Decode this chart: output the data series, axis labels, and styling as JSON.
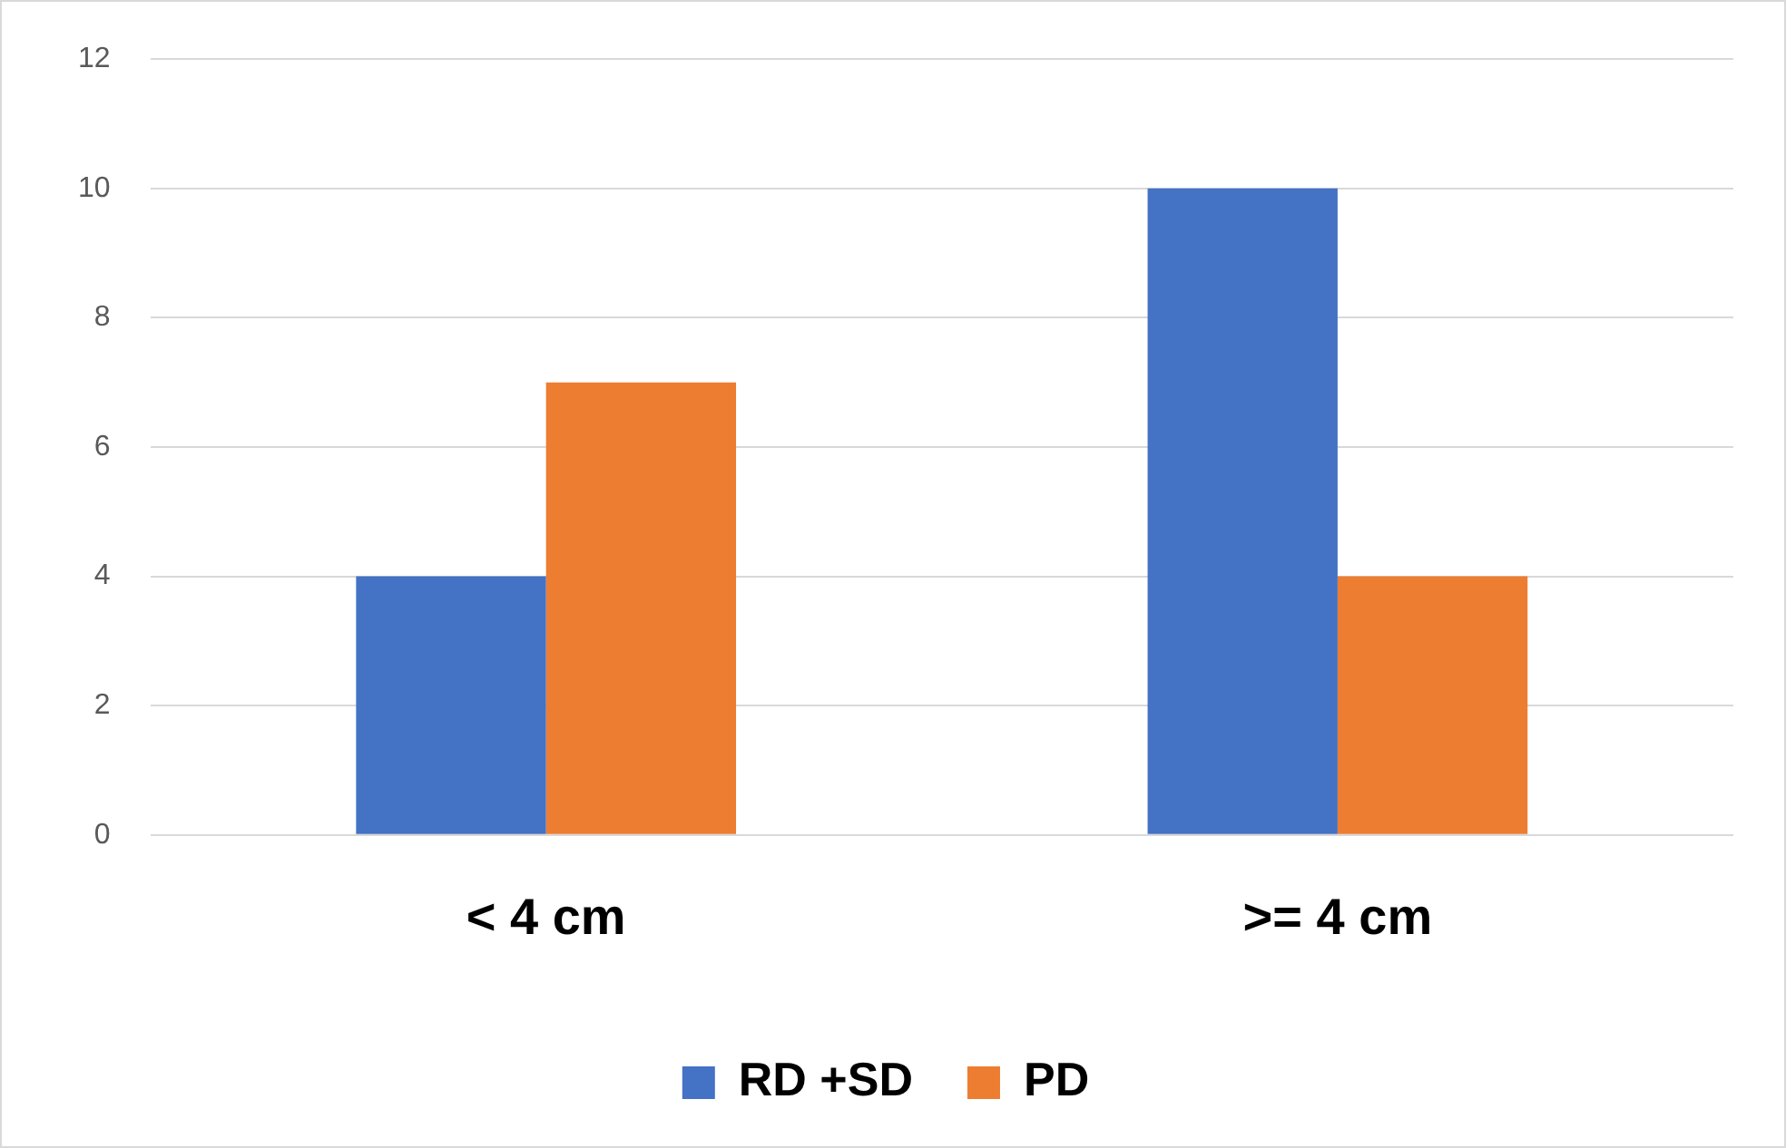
{
  "chart_data": {
    "type": "bar",
    "categories": [
      "< 4 cm",
      ">= 4 cm"
    ],
    "series": [
      {
        "name": "RD +SD",
        "color": "#4472c4",
        "values": [
          4,
          10
        ]
      },
      {
        "name": "PD",
        "color": "#ed7d31",
        "values": [
          7,
          4
        ]
      }
    ],
    "ylim": [
      0,
      12
    ],
    "yticks": [
      0,
      2,
      4,
      6,
      8,
      10,
      12
    ],
    "grid": "y",
    "legend": "bottom"
  }
}
